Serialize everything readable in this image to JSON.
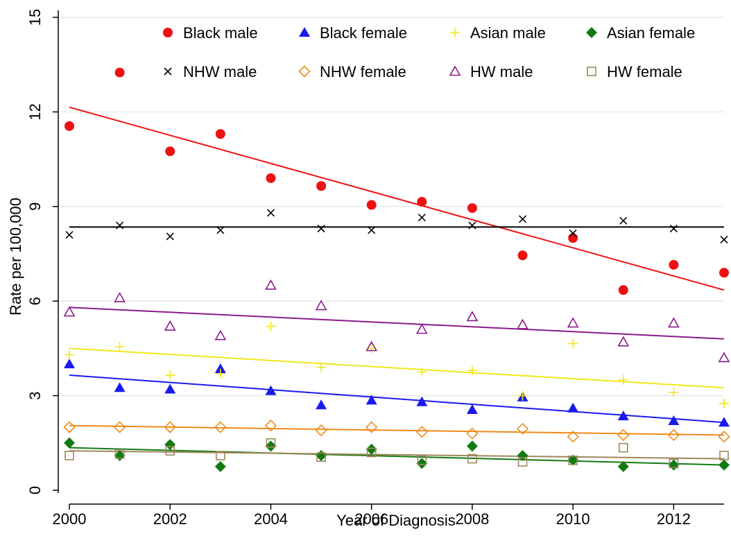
{
  "chart_data": {
    "type": "scatter",
    "title": "",
    "xlabel": "Year of Diagnosis",
    "ylabel": "Rate per 100,000",
    "xlim": [
      2000,
      2013
    ],
    "ylim": [
      0,
      15
    ],
    "x_ticks": [
      2000,
      2002,
      2004,
      2006,
      2008,
      2010,
      2012
    ],
    "y_ticks": [
      0,
      3,
      6,
      9,
      12,
      15
    ],
    "grid": "horizontal",
    "legend_placement": "top",
    "x": [
      2000,
      2001,
      2002,
      2003,
      2004,
      2005,
      2006,
      2007,
      2008,
      2009,
      2010,
      2011,
      2012,
      2013
    ],
    "series": [
      {
        "name": "Black male",
        "marker": "circle-filled",
        "color": "#ee1111",
        "values": [
          11.55,
          13.25,
          10.75,
          11.3,
          9.9,
          9.65,
          9.05,
          9.15,
          8.95,
          7.45,
          8.0,
          6.35,
          7.15,
          6.9
        ],
        "fit": [
          12.15,
          6.35
        ]
      },
      {
        "name": "Black female",
        "marker": "triangle-filled",
        "color": "#1a1aee",
        "values": [
          4.0,
          3.25,
          3.2,
          3.85,
          3.15,
          2.7,
          2.85,
          2.8,
          2.55,
          2.95,
          2.6,
          2.35,
          2.2,
          2.15
        ],
        "fit": [
          3.65,
          2.15
        ]
      },
      {
        "name": "Asian male",
        "marker": "plus",
        "color": "#f0e81a",
        "values": [
          4.3,
          4.55,
          3.65,
          3.7,
          5.2,
          3.9,
          4.5,
          3.75,
          3.8,
          3.0,
          4.65,
          3.5,
          3.1,
          2.75
        ],
        "fit": [
          4.5,
          3.25
        ]
      },
      {
        "name": "Asian female",
        "marker": "diamond-filled",
        "color": "#137a13",
        "values": [
          1.5,
          1.1,
          1.45,
          0.75,
          1.4,
          1.1,
          1.3,
          0.85,
          1.4,
          1.1,
          0.95,
          0.75,
          0.8,
          0.8
        ],
        "fit": [
          1.35,
          0.8
        ]
      },
      {
        "name": "NHW male",
        "marker": "cross",
        "color": "#000000",
        "values": [
          8.1,
          8.4,
          8.05,
          8.25,
          8.8,
          8.3,
          8.25,
          8.65,
          8.4,
          8.6,
          8.15,
          8.55,
          8.3,
          7.95
        ],
        "fit": [
          8.35,
          8.35
        ]
      },
      {
        "name": "NHW female",
        "marker": "diamond-hollow",
        "color": "#f08a1a",
        "values": [
          2.0,
          2.0,
          2.0,
          2.0,
          2.05,
          1.9,
          2.0,
          1.85,
          1.8,
          1.95,
          1.7,
          1.75,
          1.75,
          1.7
        ],
        "fit": [
          2.05,
          1.75
        ]
      },
      {
        "name": "HW male",
        "marker": "triangle-hollow",
        "color": "#8a1a8a",
        "values": [
          5.65,
          6.1,
          5.2,
          4.9,
          6.5,
          5.85,
          4.55,
          5.1,
          5.5,
          5.25,
          5.3,
          4.7,
          5.3,
          4.2
        ],
        "fit": [
          5.8,
          4.8
        ]
      },
      {
        "name": "HW female",
        "marker": "square-hollow",
        "color": "#a0875a",
        "values": [
          1.1,
          1.15,
          1.25,
          1.1,
          1.5,
          1.05,
          1.2,
          0.95,
          1.0,
          0.9,
          0.95,
          1.35,
          0.85,
          1.1
        ],
        "fit": [
          1.25,
          1.0
        ]
      }
    ]
  }
}
